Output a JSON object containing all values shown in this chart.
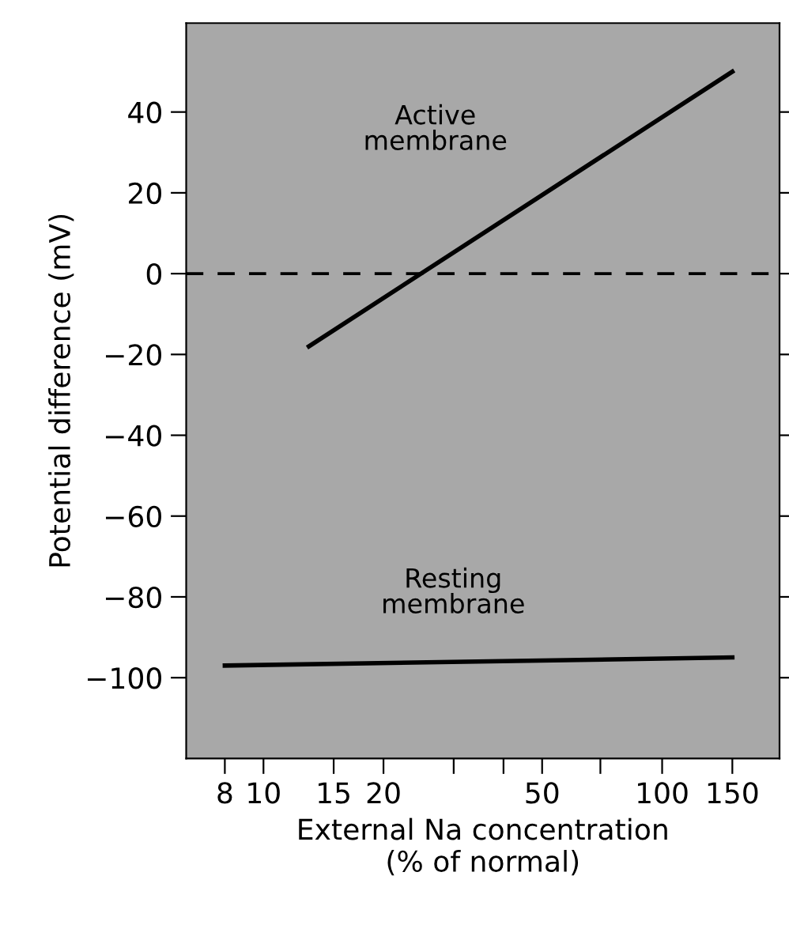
{
  "chart_data": {
    "type": "line",
    "xlabel": "External Na concentration\n(% of normal)",
    "ylabel": "Potential difference (mV)",
    "log": "x",
    "xlim": [
      6.4,
      197
    ],
    "xticks": [
      8,
      10,
      15,
      20,
      {
        "value": 30,
        "label": null
      },
      {
        "value": 40,
        "label": null
      },
      50,
      {
        "value": 70,
        "label": null
      },
      100,
      150
    ],
    "ylim": [
      -120,
      62
    ],
    "yticks": [
      -100,
      -80,
      -60,
      -40,
      -20,
      0,
      20,
      40
    ],
    "series": [
      {
        "x": [
          13,
          150
        ],
        "values": [
          -18,
          50
        ],
        "color": "#000000"
      },
      {
        "x": [
          8,
          150
        ],
        "values": [
          -97,
          -95
        ],
        "color": "#000000"
      }
    ],
    "ref_lines": [
      {
        "axis": "y",
        "value": 0,
        "line_style": "dashed",
        "color": "#000000"
      }
    ],
    "annotations": [
      "Active\nmembrane",
      "Resting\nmembrane"
    ],
    "grid": false,
    "legend": false
  }
}
